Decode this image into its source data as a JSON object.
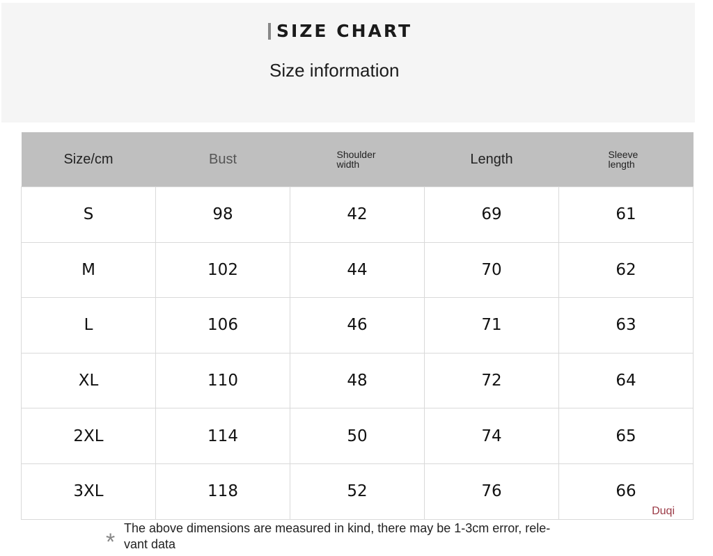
{
  "header": {
    "title": "SIZE CHART",
    "subtitle": "Size information"
  },
  "table": {
    "columns": [
      "Size/cm",
      "Bust",
      "Shoulder width",
      "Length",
      "Sleeve length"
    ],
    "rows": [
      [
        "S",
        "98",
        "42",
        "69",
        "61"
      ],
      [
        "M",
        "102",
        "44",
        "70",
        "62"
      ],
      [
        "L",
        "106",
        "46",
        "71",
        "63"
      ],
      [
        "XL",
        "110",
        "48",
        "72",
        "64"
      ],
      [
        "2XL",
        "114",
        "50",
        "74",
        "65"
      ],
      [
        "3XL",
        "118",
        "52",
        "76",
        "66"
      ]
    ]
  },
  "watermark": "Duqi",
  "footnote": {
    "marker": "*",
    "text": "The above dimensions are measured in kind, there may be 1-3cm error, rele-vant data"
  },
  "colors": {
    "header_bg": "#bfbfbf",
    "banner_bg": "#f5f5f5",
    "watermark": "#9b3a46"
  }
}
